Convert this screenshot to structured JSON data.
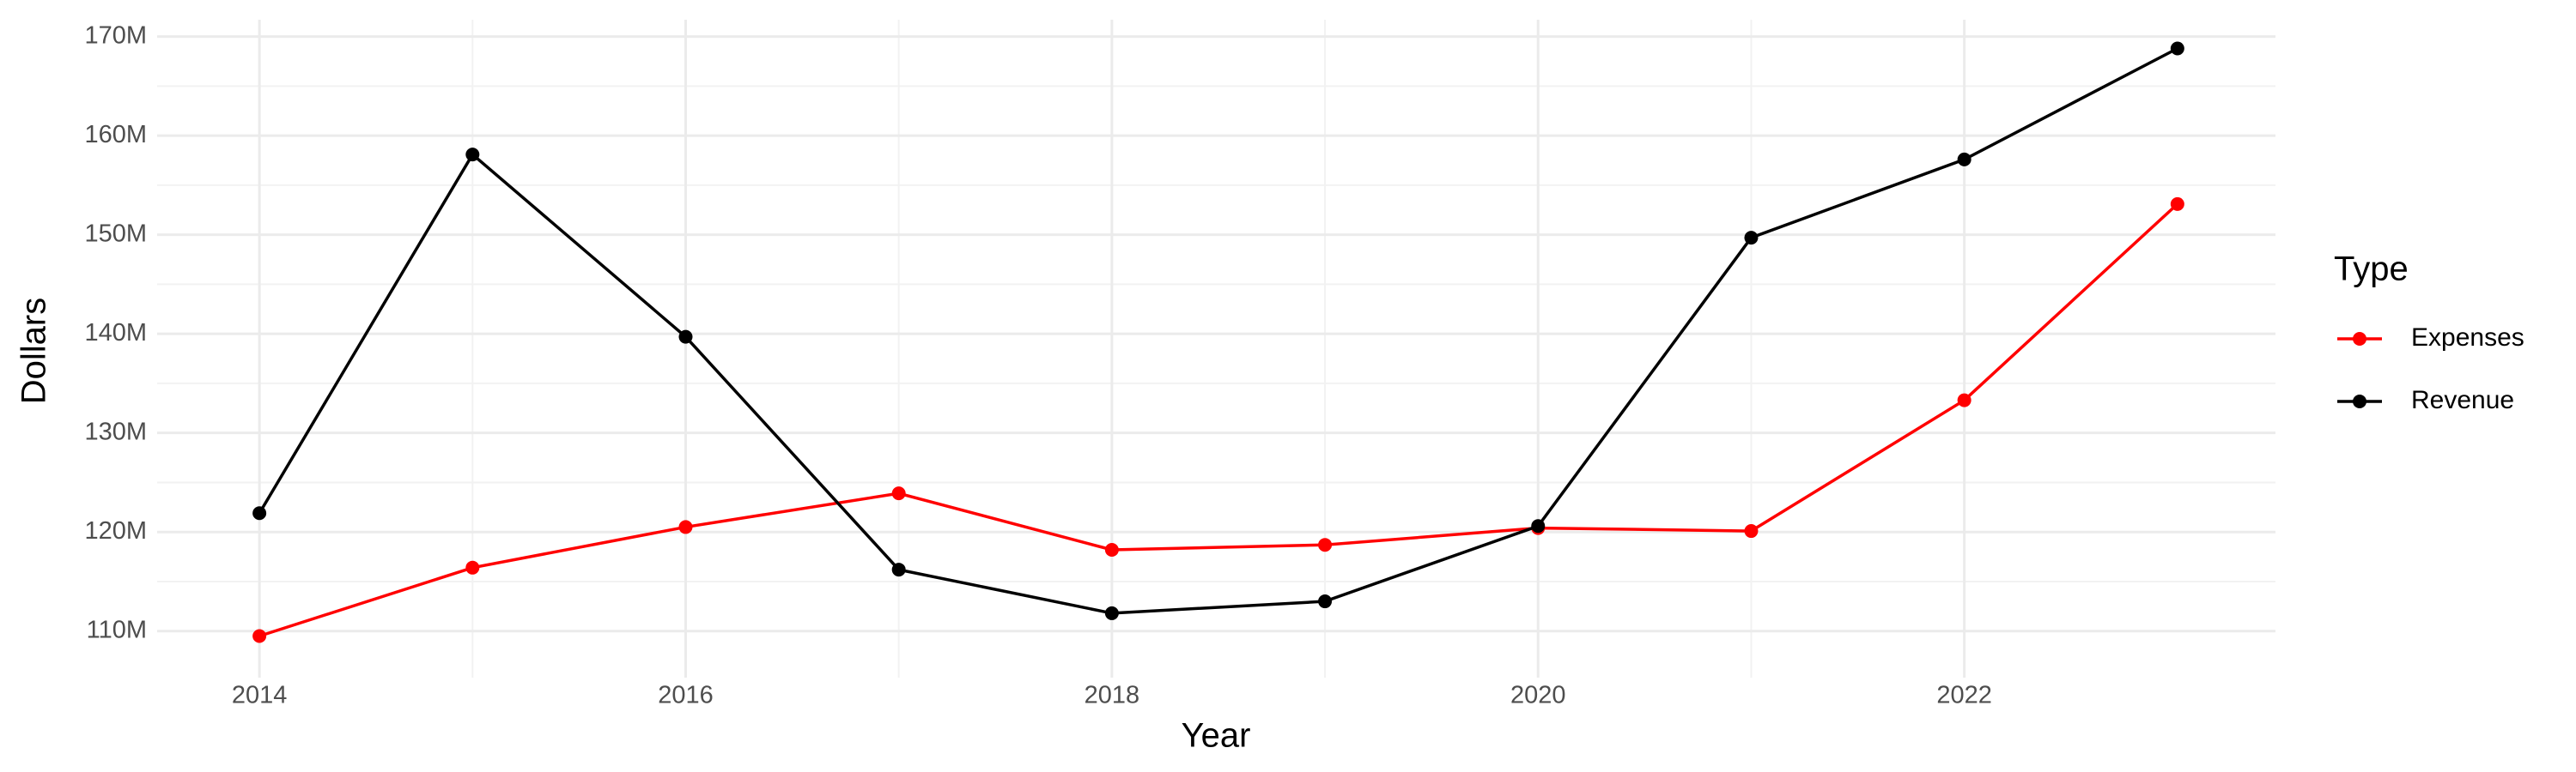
{
  "chart_data": {
    "type": "line",
    "x_label": "Year",
    "y_label": "Dollars",
    "legend_title": "Type",
    "legend_position": "right",
    "x": [
      2014,
      2015,
      2016,
      2017,
      2018,
      2019,
      2020,
      2021,
      2022,
      2023
    ],
    "series": [
      {
        "name": "Expenses",
        "color": "#ff0000",
        "values": [
          109500000,
          116400000,
          120500000,
          123900000,
          118200000,
          118700000,
          120400000,
          120100000,
          133300000,
          153100000
        ]
      },
      {
        "name": "Revenue",
        "color": "#000000",
        "values": [
          121900000,
          158100000,
          139700000,
          116200000,
          111800000,
          113000000,
          120600000,
          149700000,
          157600000,
          168800000
        ]
      }
    ],
    "xlim": [
      2013.52,
      2023.46
    ],
    "xticks": [
      2014,
      2016,
      2018,
      2020,
      2022
    ],
    "ylim": [
      105300000,
      171700000
    ],
    "yticks": [
      {
        "value": 110000000,
        "label": "110M"
      },
      {
        "value": 120000000,
        "label": "120M"
      },
      {
        "value": 130000000,
        "label": "130M"
      },
      {
        "value": 140000000,
        "label": "140M"
      },
      {
        "value": 150000000,
        "label": "150M"
      },
      {
        "value": 160000000,
        "label": "160M"
      },
      {
        "value": 170000000,
        "label": "170M"
      }
    ],
    "grid": true,
    "minor_grid": true
  }
}
